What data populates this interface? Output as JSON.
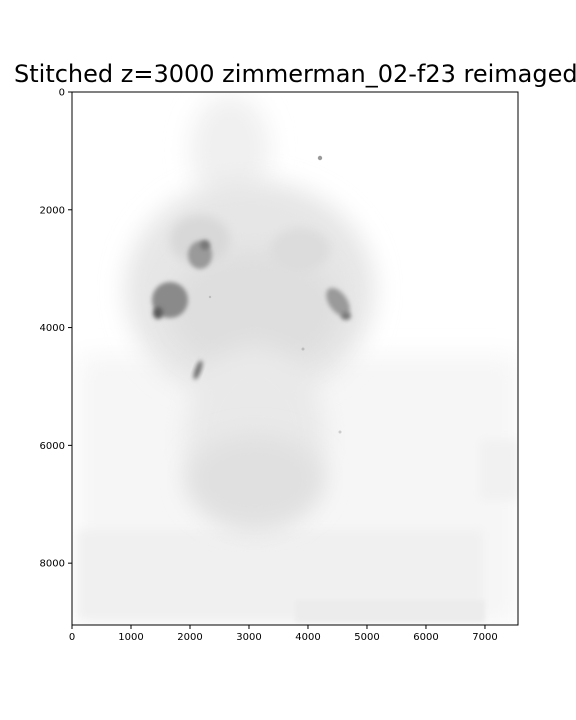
{
  "figure": {
    "title": "Stitched z=3000 zimmerman_02-f23 reimaged"
  },
  "image_axes": {
    "x_range": [
      0,
      7560
    ],
    "y_range": [
      0,
      9050
    ],
    "y_inverted": true,
    "x_ticks": [
      "0",
      "1000",
      "2000",
      "3000",
      "4000",
      "5000",
      "6000",
      "7000"
    ],
    "y_ticks": [
      "0",
      "2000",
      "4000",
      "6000",
      "8000"
    ],
    "colormap": "gray_r"
  }
}
